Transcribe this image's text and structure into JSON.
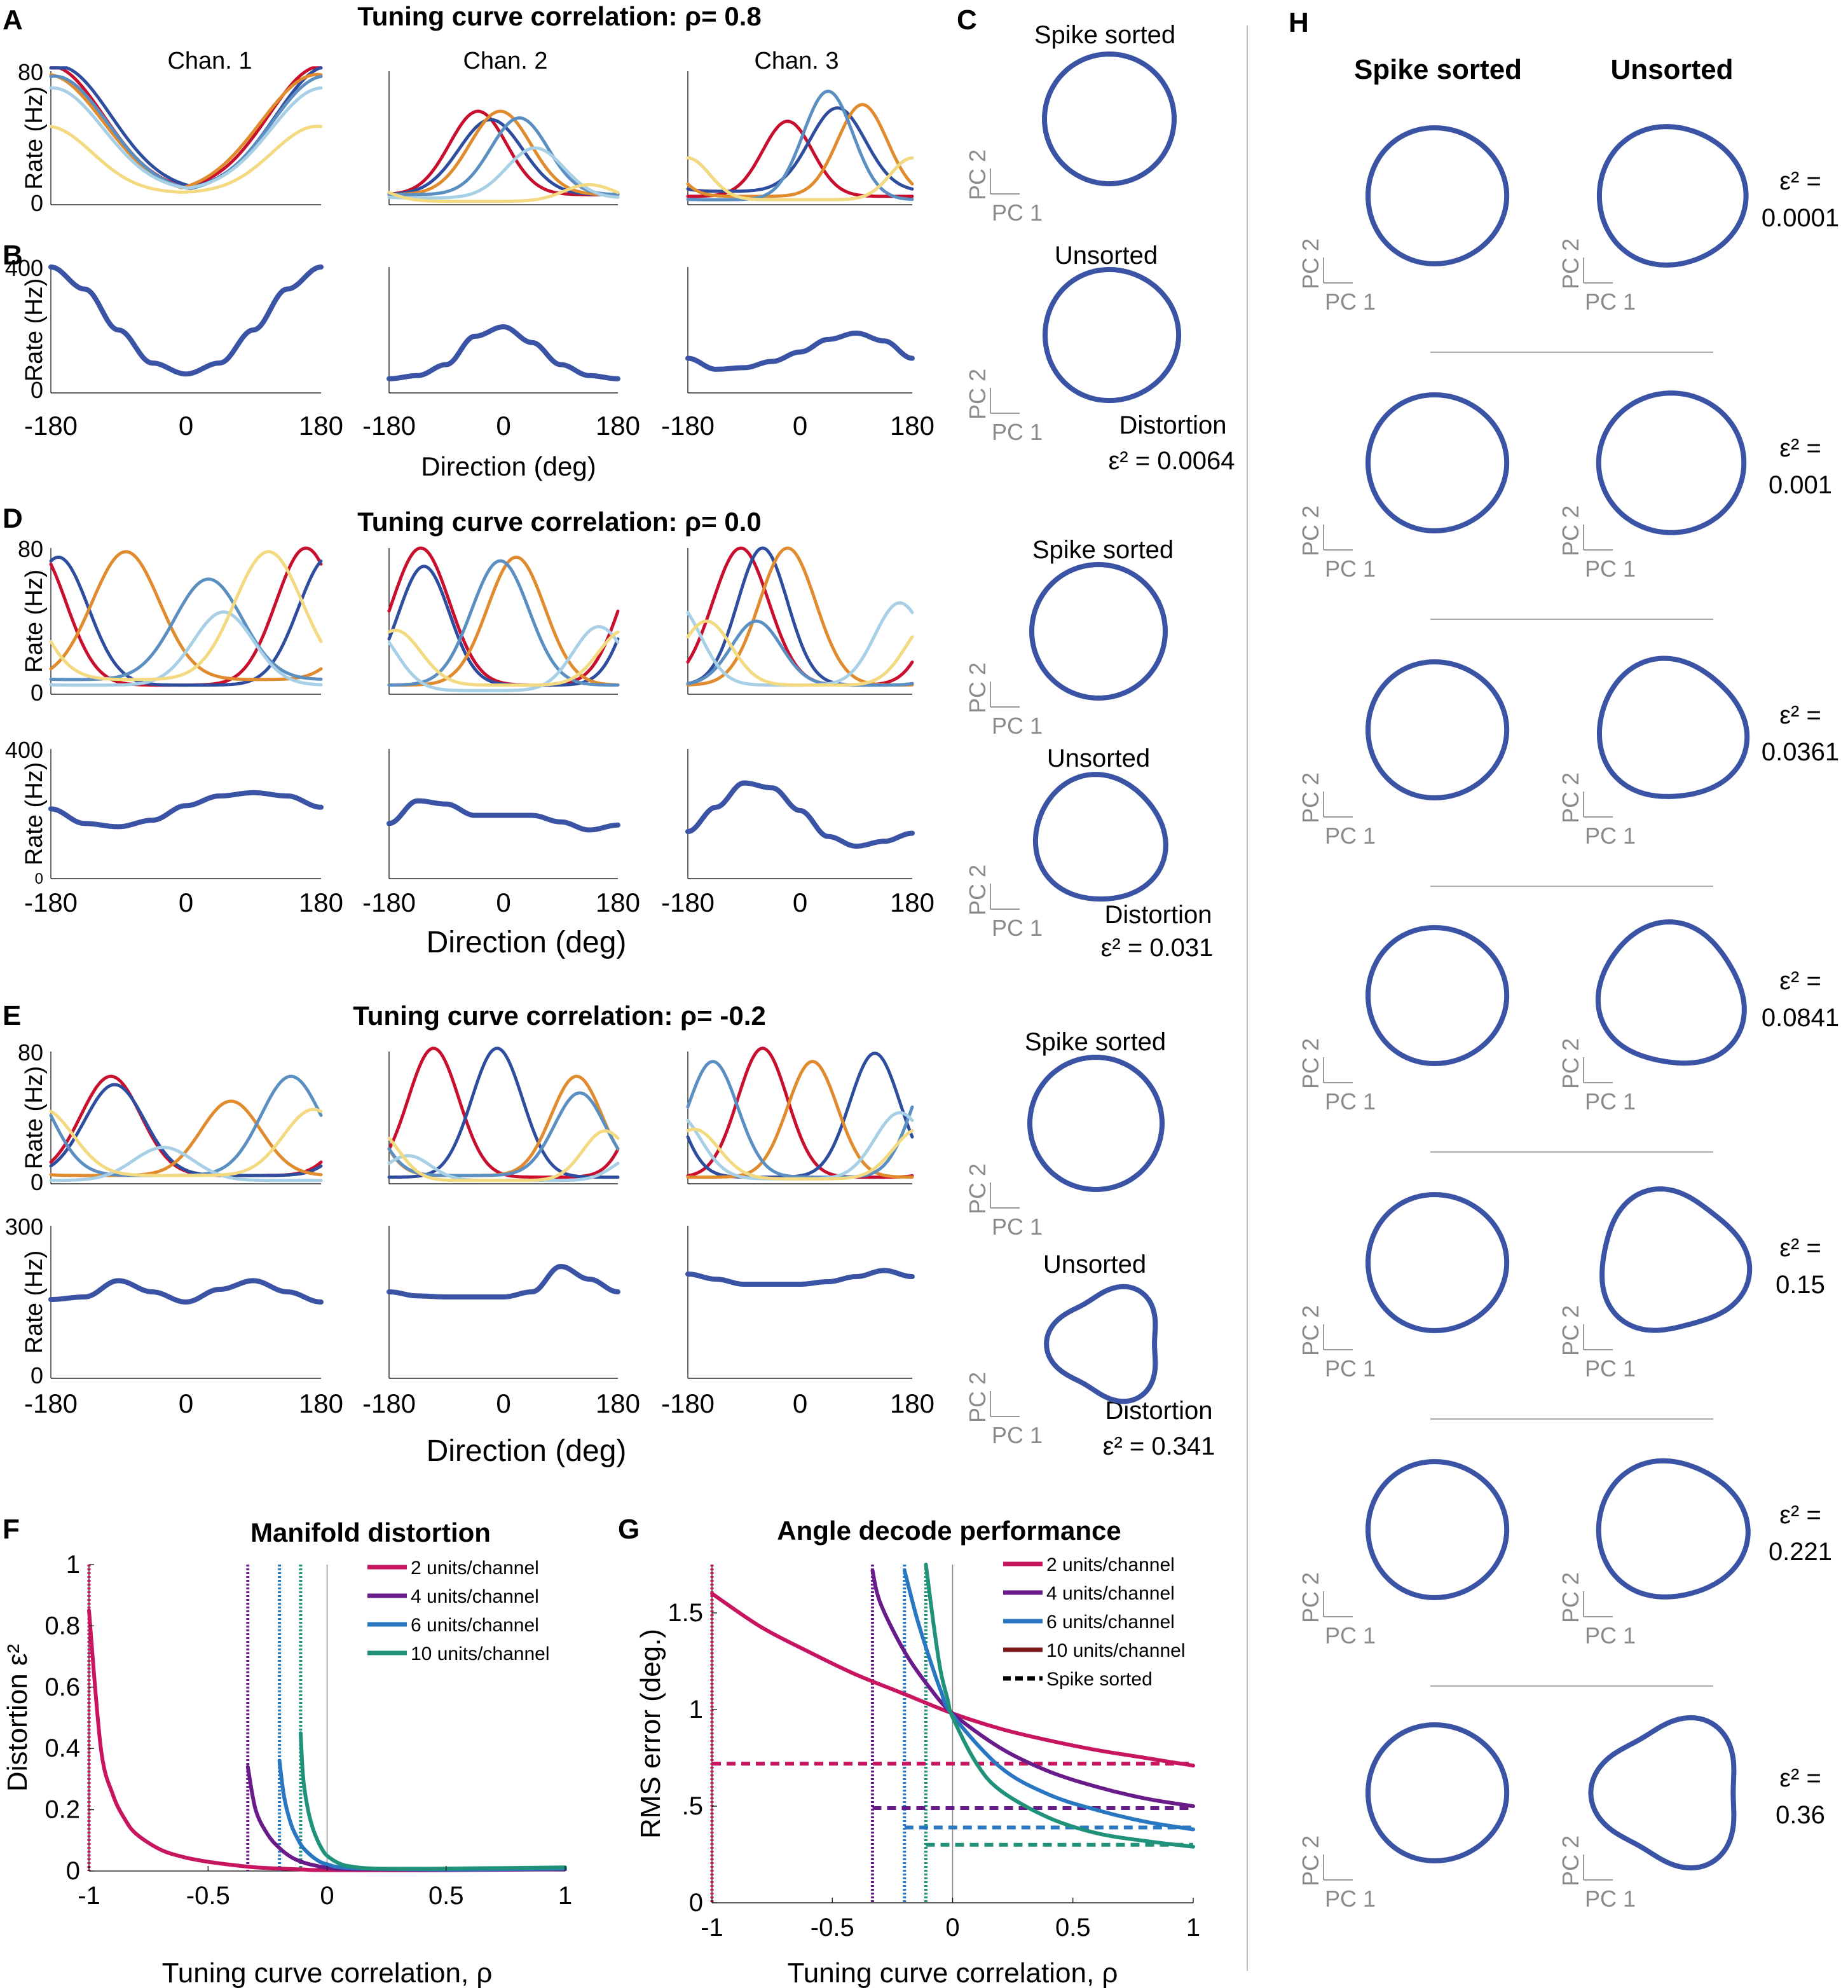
{
  "colors": {
    "summed": "#3a53a4",
    "unit_palette": [
      "#c8102e",
      "#2f4d9e",
      "#e08b2e",
      "#5b8fc2",
      "#a7cfe6",
      "#f3d980"
    ],
    "f_series": [
      "#c8155f",
      "#6a1b8a",
      "#2877c0",
      "#1f9279"
    ],
    "g_series": [
      "#c8155f",
      "#6a1b8a",
      "#2877c0",
      "#7a1a1a",
      "#1f9279"
    ],
    "axis": "#000000",
    "scalebar": "#999999"
  },
  "panel_letters": {
    "a": "A",
    "b": "B",
    "c": "C",
    "d": "D",
    "e": "E",
    "f": "F",
    "g": "G",
    "h": "H"
  },
  "titles": {
    "a": "Tuning curve correlation:  ρ= 0.8",
    "d": "Tuning curve correlation:  ρ= 0.0",
    "e": "Tuning curve correlation:  ρ= -0.2",
    "f": "Manifold distortion",
    "g": "Angle decode performance"
  },
  "channels": [
    "Chan. 1",
    "Chan. 2",
    "Chan. 3"
  ],
  "rate_label": "Rate (Hz)",
  "direction_label": "Direction (deg)",
  "x_ticks": [
    "-180",
    "0",
    "180"
  ],
  "y_ticks": {
    "a_top": "80",
    "a_bottom": "0",
    "b_top": "400",
    "b_bottom": "0",
    "d_top": "80",
    "d_bottom": "0",
    "d2_top": "400",
    "d2_bottom": "0",
    "e_top": "80",
    "e_bottom": "0",
    "e2_top": "300",
    "e2_bottom": "0"
  },
  "pc": {
    "pc1": "PC 1",
    "pc2": "PC 2"
  },
  "c_labels": {
    "spike_sorted": "Spike sorted",
    "unsorted": "Unsorted",
    "distortion": "Distortion"
  },
  "c_eps": [
    "ε² = 0.0064",
    "ε² = 0.031",
    "ε² = 0.341"
  ],
  "h_headers": {
    "sorted": "Spike sorted",
    "unsorted": "Unsorted"
  },
  "h_eps_top": [
    "ε² =",
    "ε² =",
    "ε² =",
    "ε² =",
    "ε² =",
    "ε² =",
    "ε² ="
  ],
  "h_eps_values": [
    "0.0001",
    "0.001",
    "0.0361",
    "0.0841",
    "0.15",
    "0.221",
    "0.36"
  ],
  "chart_data": [
    {
      "type": "line",
      "panel": "A",
      "title": "Tuning curve correlation:  ρ= 0.8",
      "ylabel": "Rate (Hz)",
      "xlim": [
        -180,
        180
      ],
      "ylim": [
        0,
        80
      ],
      "subplots": [
        {
          "label": "Chan. 1",
          "series": [
            {
              "center": 180,
              "amp": 75,
              "base": 8,
              "width": 70
            },
            {
              "center": -170,
              "amp": 75,
              "base": 8,
              "width": 70
            },
            {
              "center": 175,
              "amp": 72,
              "base": 6,
              "width": 75
            },
            {
              "center": -175,
              "amp": 70,
              "base": 7,
              "width": 70
            },
            {
              "center": -178,
              "amp": 62,
              "base": 8,
              "width": 68
            },
            {
              "center": 175,
              "amp": 40,
              "base": 7,
              "width": 60
            }
          ]
        },
        {
          "label": "Chan. 2",
          "series": [
            {
              "center": -40,
              "amp": 50,
              "base": 6,
              "width": 45
            },
            {
              "center": -20,
              "amp": 45,
              "base": 6,
              "width": 50
            },
            {
              "center": -5,
              "amp": 50,
              "base": 6,
              "width": 48
            },
            {
              "center": 25,
              "amp": 46,
              "base": 6,
              "width": 45
            },
            {
              "center": 50,
              "amp": 30,
              "base": 4,
              "width": 45
            },
            {
              "center": 135,
              "amp": 10,
              "base": 2,
              "width": 40
            }
          ]
        },
        {
          "label": "Chan. 3",
          "series": [
            {
              "center": -20,
              "amp": 45,
              "base": 5,
              "width": 40
            },
            {
              "center": 60,
              "amp": 50,
              "base": 8,
              "width": 45
            },
            {
              "center": 100,
              "amp": 55,
              "base": 5,
              "width": 40
            },
            {
              "center": 45,
              "amp": 65,
              "base": 3,
              "width": 40
            },
            {
              "center": 180,
              "amp": 25,
              "base": 3,
              "width": 35
            },
            {
              "center": -180,
              "amp": 25,
              "base": 3,
              "width": 35
            }
          ]
        }
      ]
    },
    {
      "type": "line",
      "panel": "B",
      "ylabel": "Rate (Hz)",
      "xlabel": "Direction (deg)",
      "x": [
        -180,
        -135,
        -90,
        -45,
        0,
        45,
        90,
        135,
        180
      ],
      "xlim": [
        -180,
        180
      ],
      "ylim": [
        0,
        400
      ],
      "series": [
        {
          "name": "Chan. 1",
          "values": [
            400,
            330,
            200,
            95,
            60,
            95,
            200,
            330,
            400
          ]
        },
        {
          "name": "Chan. 2",
          "values": [
            45,
            55,
            90,
            180,
            210,
            160,
            90,
            55,
            45
          ]
        },
        {
          "name": "Chan. 3",
          "values": [
            110,
            75,
            80,
            100,
            130,
            170,
            190,
            165,
            110
          ]
        }
      ]
    },
    {
      "type": "line",
      "panel": "D",
      "title": "Tuning curve correlation:  ρ= 0.0",
      "ylabel": "Rate (Hz)",
      "xlim": [
        -180,
        180
      ],
      "ylim": [
        0,
        80
      ],
      "subplots": [
        {
          "label": "Chan. 1",
          "series": [
            {
              "center": 160,
              "amp": 75,
              "base": 5,
              "width": 40
            },
            {
              "center": -170,
              "amp": 70,
              "base": 5,
              "width": 40
            },
            {
              "center": -80,
              "amp": 70,
              "base": 8,
              "width": 45
            },
            {
              "center": 30,
              "amp": 55,
              "base": 8,
              "width": 45
            },
            {
              "center": 50,
              "amp": 40,
              "base": 5,
              "width": 40
            },
            {
              "center": 110,
              "amp": 70,
              "base": 8,
              "width": 45
            }
          ]
        },
        {
          "label": "Chan. 2",
          "series": [
            {
              "center": -130,
              "amp": 75,
              "base": 5,
              "width": 45
            },
            {
              "center": -125,
              "amp": 65,
              "base": 5,
              "width": 40
            },
            {
              "center": 20,
              "amp": 70,
              "base": 5,
              "width": 45
            },
            {
              "center": -5,
              "amp": 68,
              "base": 5,
              "width": 45
            },
            {
              "center": 150,
              "amp": 35,
              "base": 2,
              "width": 40
            },
            {
              "center": -170,
              "amp": 30,
              "base": 5,
              "width": 40
            }
          ]
        },
        {
          "label": "Chan. 3",
          "series": [
            {
              "center": -95,
              "amp": 75,
              "base": 5,
              "width": 45
            },
            {
              "center": -60,
              "amp": 75,
              "base": 5,
              "width": 40
            },
            {
              "center": -20,
              "amp": 75,
              "base": 5,
              "width": 45
            },
            {
              "center": -70,
              "amp": 35,
              "base": 5,
              "width": 40
            },
            {
              "center": 160,
              "amp": 45,
              "base": 5,
              "width": 40
            },
            {
              "center": -150,
              "amp": 35,
              "base": 5,
              "width": 40
            }
          ]
        }
      ]
    },
    {
      "type": "line",
      "panel": "D (summed)",
      "ylabel": "Rate (Hz)",
      "xlabel": "Direction (deg)",
      "x": [
        -180,
        -135,
        -90,
        -45,
        0,
        45,
        90,
        135,
        180
      ],
      "xlim": [
        -180,
        180
      ],
      "ylim": [
        0,
        400
      ],
      "series": [
        {
          "name": "Chan. 1",
          "values": [
            215,
            170,
            160,
            180,
            225,
            255,
            265,
            255,
            220
          ]
        },
        {
          "name": "Chan. 2",
          "values": [
            170,
            240,
            230,
            195,
            195,
            195,
            175,
            150,
            165
          ]
        },
        {
          "name": "Chan. 3",
          "values": [
            145,
            220,
            295,
            280,
            210,
            130,
            100,
            115,
            140
          ]
        }
      ]
    },
    {
      "type": "line",
      "panel": "E",
      "title": "Tuning curve correlation:  ρ= -0.2",
      "ylabel": "Rate (Hz)",
      "xlim": [
        -180,
        180
      ],
      "ylim": [
        0,
        80
      ],
      "subplots": [
        {
          "label": "Chan. 1",
          "series": [
            {
              "center": -100,
              "amp": 60,
              "base": 5,
              "width": 40
            },
            {
              "center": -95,
              "amp": 55,
              "base": 5,
              "width": 40
            },
            {
              "center": 60,
              "amp": 45,
              "base": 5,
              "width": 40
            },
            {
              "center": 140,
              "amp": 60,
              "base": 5,
              "width": 40
            },
            {
              "center": -30,
              "amp": 20,
              "base": 2,
              "width": 40
            },
            {
              "center": 170,
              "amp": 40,
              "base": 5,
              "width": 40
            }
          ]
        },
        {
          "label": "Chan. 2",
          "series": [
            {
              "center": -110,
              "amp": 78,
              "base": 4,
              "width": 40
            },
            {
              "center": -10,
              "amp": 78,
              "base": 4,
              "width": 40
            },
            {
              "center": 115,
              "amp": 60,
              "base": 5,
              "width": 40
            },
            {
              "center": 120,
              "amp": 50,
              "base": 5,
              "width": 40
            },
            {
              "center": -150,
              "amp": 15,
              "base": 2,
              "width": 35
            },
            {
              "center": 160,
              "amp": 30,
              "base": 2,
              "width": 35
            }
          ]
        },
        {
          "label": "Chan. 3",
          "series": [
            {
              "center": -60,
              "amp": 78,
              "base": 4,
              "width": 40
            },
            {
              "center": 120,
              "amp": 75,
              "base": 4,
              "width": 40
            },
            {
              "center": 20,
              "amp": 70,
              "base": 4,
              "width": 40
            },
            {
              "center": -140,
              "amp": 70,
              "base": 4,
              "width": 40
            },
            {
              "center": 160,
              "amp": 40,
              "base": 3,
              "width": 40
            },
            {
              "center": -170,
              "amp": 30,
              "base": 3,
              "width": 40
            }
          ]
        }
      ]
    },
    {
      "type": "line",
      "panel": "E (summed)",
      "ylabel": "Rate (Hz)",
      "xlabel": "Direction (deg)",
      "x": [
        -180,
        -135,
        -90,
        -45,
        0,
        45,
        90,
        135,
        180
      ],
      "xlim": [
        -180,
        180
      ],
      "ylim": [
        0,
        300
      ],
      "series": [
        {
          "name": "Chan. 1",
          "values": [
            155,
            160,
            192,
            170,
            150,
            175,
            192,
            170,
            150
          ]
        },
        {
          "name": "Chan. 2",
          "values": [
            170,
            162,
            160,
            160,
            160,
            170,
            220,
            195,
            170
          ]
        },
        {
          "name": "Chan. 3",
          "values": [
            205,
            195,
            185,
            185,
            185,
            190,
            200,
            212,
            200
          ]
        }
      ]
    },
    {
      "type": "line",
      "panel": "F",
      "title": "Manifold distortion",
      "xlabel": "Tuning curve correlation,  ρ",
      "ylabel": "Distortion ε²",
      "xlim": [
        -1,
        1
      ],
      "ylim": [
        0,
        1
      ],
      "x_ticks": [
        "-1",
        "-0.5",
        "0",
        "0.5",
        "1"
      ],
      "y_ticks": [
        "0",
        "0.2",
        "0.4",
        "0.6",
        "0.8",
        "1"
      ],
      "legend_position": "top-right",
      "series": [
        {
          "name": "2 units/channel",
          "x": [
            -1,
            -0.95,
            -0.9,
            -0.85,
            -0.8,
            -0.7,
            -0.6,
            -0.5,
            -0.4,
            -0.3,
            -0.2,
            -0.1,
            0,
            0.5,
            1
          ],
          "values": [
            0.85,
            0.4,
            0.25,
            0.17,
            0.12,
            0.07,
            0.045,
            0.03,
            0.02,
            0.012,
            0.008,
            0.005,
            0.003,
            0.003,
            0.006
          ]
        },
        {
          "name": "4 units/channel",
          "x": [
            -0.333,
            -0.3,
            -0.25,
            -0.2,
            -0.15,
            -0.1,
            -0.05,
            0,
            0.1,
            0.5,
            1
          ],
          "values": [
            0.34,
            0.2,
            0.12,
            0.075,
            0.045,
            0.028,
            0.018,
            0.011,
            0.006,
            0.004,
            0.006
          ]
        },
        {
          "name": "6 units/channel",
          "x": [
            -0.2,
            -0.18,
            -0.15,
            -0.12,
            -0.1,
            -0.05,
            0,
            0.1,
            0.5,
            1
          ],
          "values": [
            0.36,
            0.24,
            0.15,
            0.1,
            0.075,
            0.04,
            0.022,
            0.01,
            0.005,
            0.008
          ]
        },
        {
          "name": "10 units/channel",
          "x": [
            -0.111,
            -0.1,
            -0.08,
            -0.06,
            -0.04,
            -0.02,
            0,
            0.05,
            0.1,
            0.2,
            0.5,
            1
          ],
          "values": [
            0.45,
            0.3,
            0.2,
            0.14,
            0.1,
            0.07,
            0.05,
            0.025,
            0.015,
            0.008,
            0.008,
            0.012
          ]
        }
      ],
      "vlines": [
        -1,
        -0.333,
        -0.2,
        -0.111
      ]
    },
    {
      "type": "line",
      "panel": "G",
      "title": "Angle decode performance",
      "xlabel": "Tuning curve correlation,  ρ",
      "ylabel": "RMS error (deg.)",
      "xlim": [
        -1,
        1
      ],
      "ylim": [
        0,
        1.75
      ],
      "x_ticks": [
        "-1",
        "-0.5",
        "0",
        "0.5",
        "1"
      ],
      "y_ticks": [
        "0",
        ".5",
        "1",
        "1.5"
      ],
      "legend_position": "top-right",
      "series": [
        {
          "name": "2 units/channel",
          "x": [
            -1,
            -0.8,
            -0.6,
            -0.4,
            -0.2,
            0,
            0.2,
            0.4,
            0.6,
            0.8,
            1
          ],
          "values": [
            1.6,
            1.43,
            1.3,
            1.18,
            1.08,
            0.98,
            0.9,
            0.84,
            0.79,
            0.75,
            0.71
          ]
        },
        {
          "name": "4 units/channel",
          "x": [
            -0.333,
            -0.3,
            -0.2,
            -0.1,
            0,
            0.2,
            0.4,
            0.6,
            0.8,
            1
          ],
          "values": [
            1.72,
            1.55,
            1.3,
            1.12,
            0.98,
            0.8,
            0.68,
            0.6,
            0.54,
            0.5
          ]
        },
        {
          "name": "6 units/channel",
          "x": [
            -0.2,
            -0.15,
            -0.1,
            -0.05,
            0,
            0.2,
            0.4,
            0.6,
            0.8,
            1
          ],
          "values": [
            1.72,
            1.48,
            1.28,
            1.1,
            0.97,
            0.7,
            0.56,
            0.48,
            0.42,
            0.38
          ]
        },
        {
          "name": "10 units/channel",
          "x": [],
          "values": []
        },
        {
          "name": "Spike sorted",
          "x": [],
          "values": []
        },
        {
          "name": "10 units/channel (curve)",
          "x": [
            -0.111,
            -0.08,
            -0.05,
            -0.02,
            0,
            0.1,
            0.2,
            0.4,
            0.6,
            0.8,
            1
          ],
          "values": [
            1.75,
            1.45,
            1.2,
            1.05,
            0.96,
            0.72,
            0.58,
            0.44,
            0.36,
            0.32,
            0.29
          ]
        }
      ],
      "spike_sorted_levels": [
        {
          "from": -1,
          "value": 0.72,
          "series": "2 units/channel"
        },
        {
          "from": -0.333,
          "value": 0.49,
          "series": "4 units/channel"
        },
        {
          "from": -0.2,
          "value": 0.39,
          "series": "6 units/channel"
        },
        {
          "from": -0.111,
          "value": 0.3,
          "series": "10 units/channel (curve)"
        }
      ],
      "vlines": [
        -1,
        -0.333,
        -0.2,
        -0.111
      ]
    }
  ]
}
